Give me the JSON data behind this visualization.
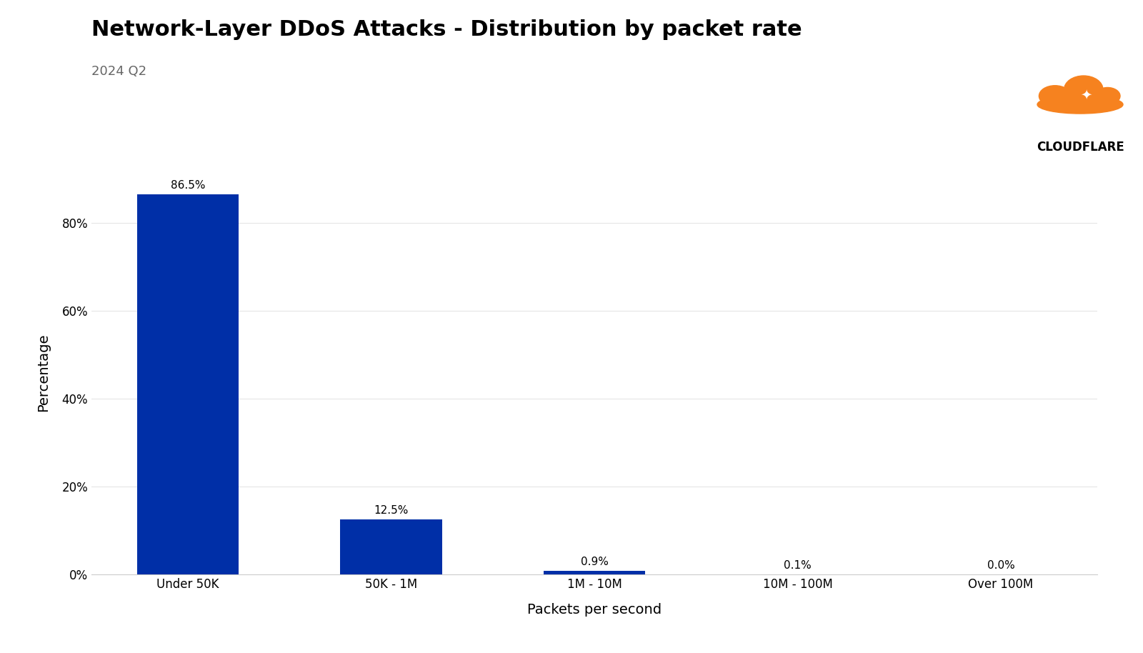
{
  "title": "Network-Layer DDoS Attacks - Distribution by packet rate",
  "subtitle": "2024 Q2",
  "categories": [
    "Under 50K",
    "50K - 1M",
    "1M - 10M",
    "10M - 100M",
    "Over 100M"
  ],
  "values": [
    86.5,
    12.5,
    0.9,
    0.1,
    0.0
  ],
  "labels": [
    "86.5%",
    "12.5%",
    "0.9%",
    "0.1%",
    "0.0%"
  ],
  "bar_color": "#002fa7",
  "xlabel": "Packets per second",
  "ylabel": "Percentage",
  "yticks": [
    0,
    20,
    40,
    60,
    80
  ],
  "ytick_labels": [
    "0%",
    "20%",
    "40%",
    "60%",
    "80%"
  ],
  "background_color": "#ffffff",
  "plot_bg_color": "#ffffff",
  "grid_color": "#e5e5e5",
  "title_fontsize": 22,
  "subtitle_fontsize": 13,
  "axis_label_fontsize": 14,
  "tick_fontsize": 12,
  "bar_label_fontsize": 11,
  "ylim": [
    0,
    92
  ]
}
